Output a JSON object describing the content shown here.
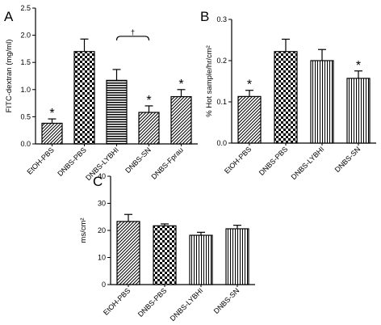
{
  "chart_data": [
    {
      "panel": "A",
      "type": "bar",
      "ylabel": "FITC-dextran (mg/ml)",
      "ylim": [
        0,
        2.5
      ],
      "yticks": [
        "0.0",
        "0.5",
        "1.0",
        "1.5",
        "2.0",
        "2.5"
      ],
      "categories": [
        "EtOH-PBS",
        "DNBS-PBS",
        "DNBS-LYBHI",
        "DNBS-SN",
        "DNBS-Fprau"
      ],
      "values": [
        0.38,
        1.7,
        1.17,
        0.58,
        0.87
      ],
      "errors": [
        0.08,
        0.23,
        0.2,
        0.12,
        0.13
      ],
      "patterns": [
        "diag",
        "check",
        "hstripe",
        "diag",
        "diag"
      ],
      "markers": [
        "*",
        "",
        "",
        "*",
        "*"
      ],
      "bracket": {
        "from": 2,
        "to": 3,
        "label": "†"
      }
    },
    {
      "panel": "B",
      "type": "bar",
      "ylabel": "% Hot sample/hr/cm²",
      "ylim": [
        0,
        0.3
      ],
      "yticks": [
        "0.0",
        "0.1",
        "0.2",
        "0.3"
      ],
      "categories": [
        "EtOH-PBS",
        "DNBS-PBS",
        "DNBS-LYBHI",
        "DNBS-SN"
      ],
      "values": [
        0.113,
        0.222,
        0.2,
        0.157
      ],
      "errors": [
        0.015,
        0.03,
        0.027,
        0.018
      ],
      "patterns": [
        "diag",
        "check",
        "vstripe",
        "vstripe"
      ],
      "markers": [
        "*",
        "",
        "",
        "*"
      ]
    },
    {
      "panel": "C",
      "type": "bar",
      "ylabel": "ms/cm²",
      "ylim": [
        0,
        40
      ],
      "yticks": [
        "0",
        "10",
        "20",
        "30",
        "40"
      ],
      "categories": [
        "EtOH-PBS",
        "DNBS-PBS",
        "DNBS-LYBHI",
        "DNBS-SN"
      ],
      "values": [
        23.3,
        21.7,
        18.2,
        20.6
      ],
      "errors": [
        2.6,
        0.7,
        1.1,
        1.3
      ],
      "patterns": [
        "diag",
        "check",
        "vstripe",
        "vstripe"
      ],
      "markers": [
        "",
        "",
        "",
        ""
      ]
    }
  ]
}
